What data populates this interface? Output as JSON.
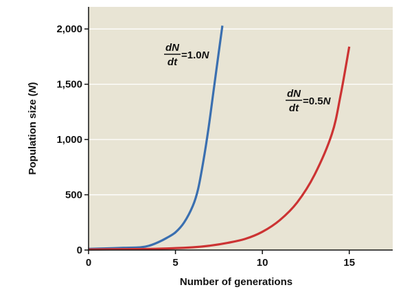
{
  "chart_data": {
    "type": "line",
    "title": "",
    "xlabel": "Number of generations",
    "ylabel_text": "Population size (",
    "ylabel_var": "N",
    "ylabel_close": ")",
    "xlim": [
      0,
      17.5
    ],
    "ylim": [
      0,
      2200
    ],
    "xticks": [
      0,
      5,
      10,
      15
    ],
    "xtick_labels": [
      "0",
      "5",
      "10",
      "15"
    ],
    "yticks": [
      0,
      500,
      1000,
      1500,
      2000
    ],
    "ytick_labels": [
      "0",
      "500",
      "1,000",
      "1,500",
      "2,000"
    ],
    "grid": "horizontal",
    "background_color": "#e8e4d4",
    "series": [
      {
        "name": "dN/dt = 1.0N",
        "color": "#3a6fb0",
        "x": [
          0,
          1,
          2,
          3,
          3.5,
          4,
          4.5,
          5,
          5.5,
          6,
          6.3,
          6.6,
          6.9,
          7.2,
          7.5,
          7.7
        ],
        "y": [
          10,
          15,
          20,
          25,
          40,
          70,
          110,
          160,
          250,
          400,
          550,
          800,
          1100,
          1450,
          1800,
          2030
        ]
      },
      {
        "name": "dN/dt = 0.5N",
        "color": "#cc3333",
        "x": [
          0,
          2,
          4,
          6,
          7,
          8,
          9,
          10,
          11,
          12,
          13,
          14,
          14.5,
          15
        ],
        "y": [
          5,
          8,
          12,
          25,
          40,
          65,
          100,
          165,
          270,
          430,
          680,
          1050,
          1400,
          1840
        ]
      }
    ],
    "annotations": [
      {
        "series": 0,
        "num": "dN",
        "den": "dt",
        "rhs_prefix": "=1.0",
        "rhs_var": "N"
      },
      {
        "series": 1,
        "num": "dN",
        "den": "dt",
        "rhs_prefix": "=0.5",
        "rhs_var": "N"
      }
    ]
  }
}
